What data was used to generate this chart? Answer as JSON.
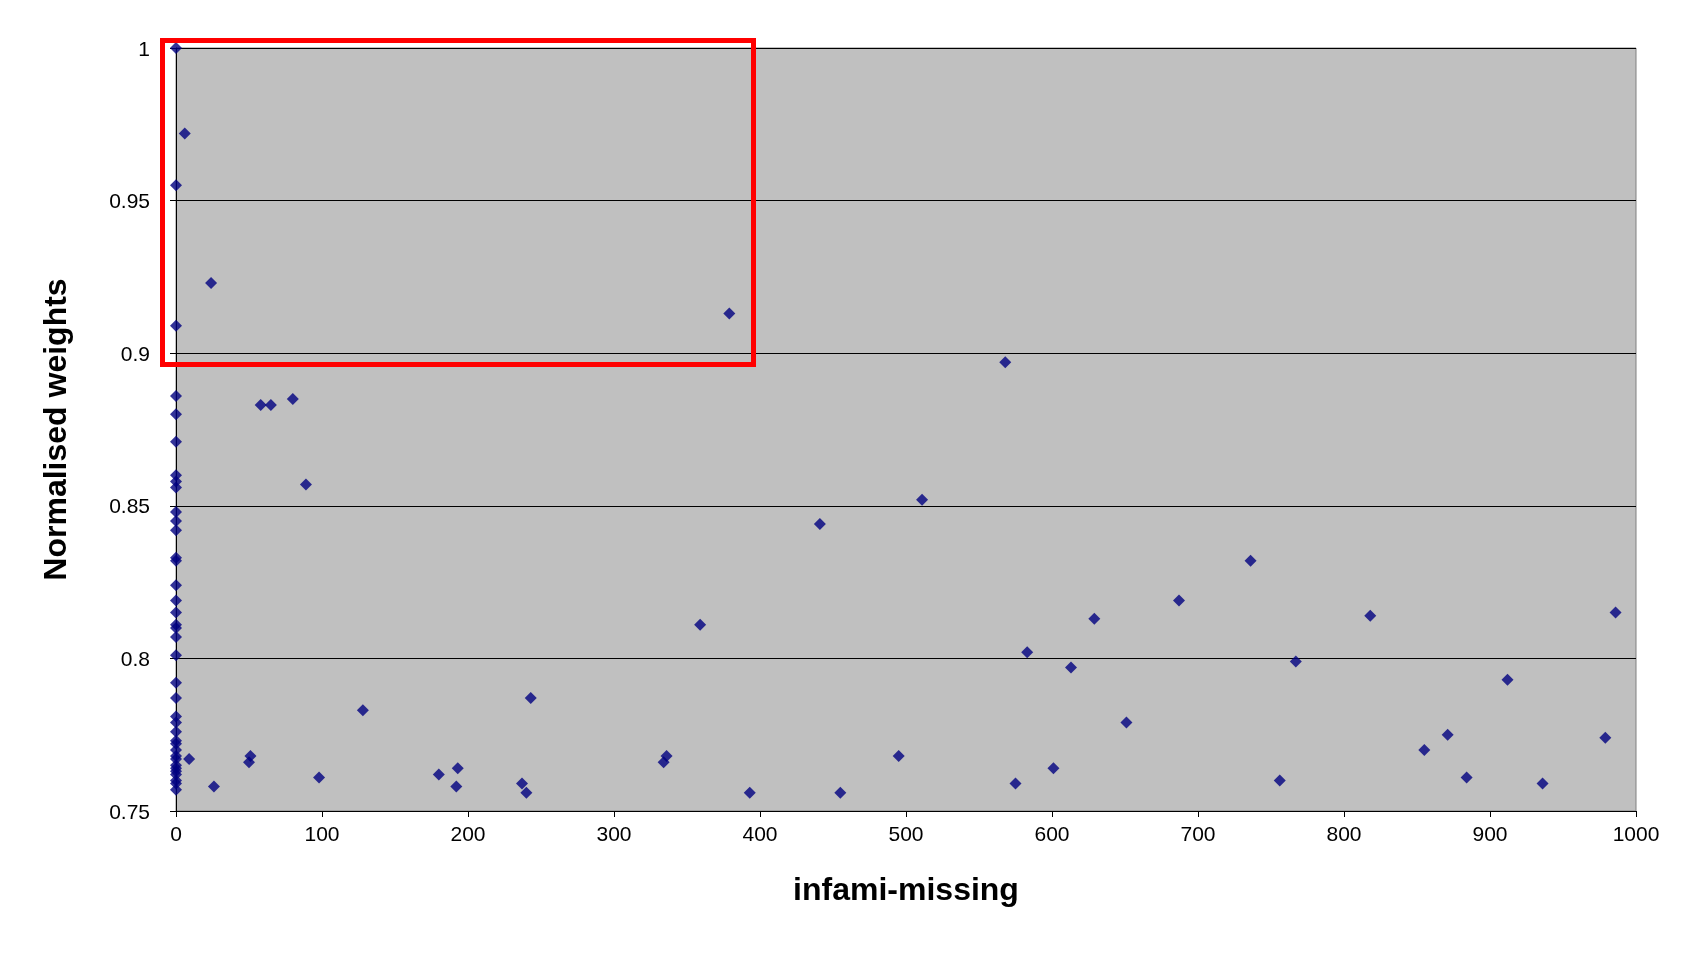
{
  "chart_data": {
    "type": "scatter",
    "xlabel": "infami-missing",
    "ylabel": "Normalised weights",
    "x": [
      0,
      0,
      0,
      0,
      0,
      0,
      0,
      0,
      0,
      0,
      0,
      0,
      0,
      0,
      0,
      0,
      0,
      0,
      0,
      0,
      0,
      0,
      0,
      0,
      0,
      0,
      0,
      0,
      0,
      0,
      0,
      0,
      0,
      0,
      0,
      0,
      0,
      0,
      6,
      24,
      379,
      568,
      58,
      65,
      80,
      89,
      511,
      441,
      736,
      687,
      359,
      629,
      818,
      986,
      583,
      613,
      767,
      912,
      128,
      243,
      651,
      871,
      979,
      855,
      9,
      51,
      50,
      336,
      334,
      495,
      193,
      601,
      98,
      180,
      884,
      237,
      575,
      756,
      936,
      26,
      192,
      240,
      393,
      455
    ],
    "series": [
      {
        "color": "#000080",
        "values": [
          1.0,
          0.955,
          0.909,
          0.886,
          0.88,
          0.871,
          0.86,
          0.858,
          0.856,
          0.848,
          0.845,
          0.842,
          0.833,
          0.832,
          0.824,
          0.819,
          0.815,
          0.811,
          0.81,
          0.807,
          0.801,
          0.792,
          0.787,
          0.781,
          0.779,
          0.776,
          0.773,
          0.772,
          0.77,
          0.768,
          0.767,
          0.765,
          0.764,
          0.763,
          0.762,
          0.76,
          0.759,
          0.757,
          0.972,
          0.923,
          0.913,
          0.897,
          0.883,
          0.883,
          0.885,
          0.857,
          0.852,
          0.844,
          0.832,
          0.819,
          0.811,
          0.813,
          0.814,
          0.815,
          0.802,
          0.797,
          0.799,
          0.793,
          0.783,
          0.787,
          0.779,
          0.775,
          0.774,
          0.77,
          0.767,
          0.768,
          0.766,
          0.768,
          0.766,
          0.768,
          0.764,
          0.764,
          0.761,
          0.762,
          0.761,
          0.759,
          0.759,
          0.76,
          0.759,
          0.758,
          0.758,
          0.756,
          0.756,
          0.756
        ]
      }
    ],
    "xlim": [
      0,
      1000
    ],
    "xticks": [
      0,
      100,
      200,
      300,
      400,
      500,
      600,
      700,
      800,
      900,
      1000
    ],
    "ylim": [
      0.75,
      1
    ],
    "yticks": [
      0.75,
      0.8,
      0.85,
      0.9,
      0.95,
      1
    ],
    "grid": "y",
    "marker": "diamond"
  }
}
